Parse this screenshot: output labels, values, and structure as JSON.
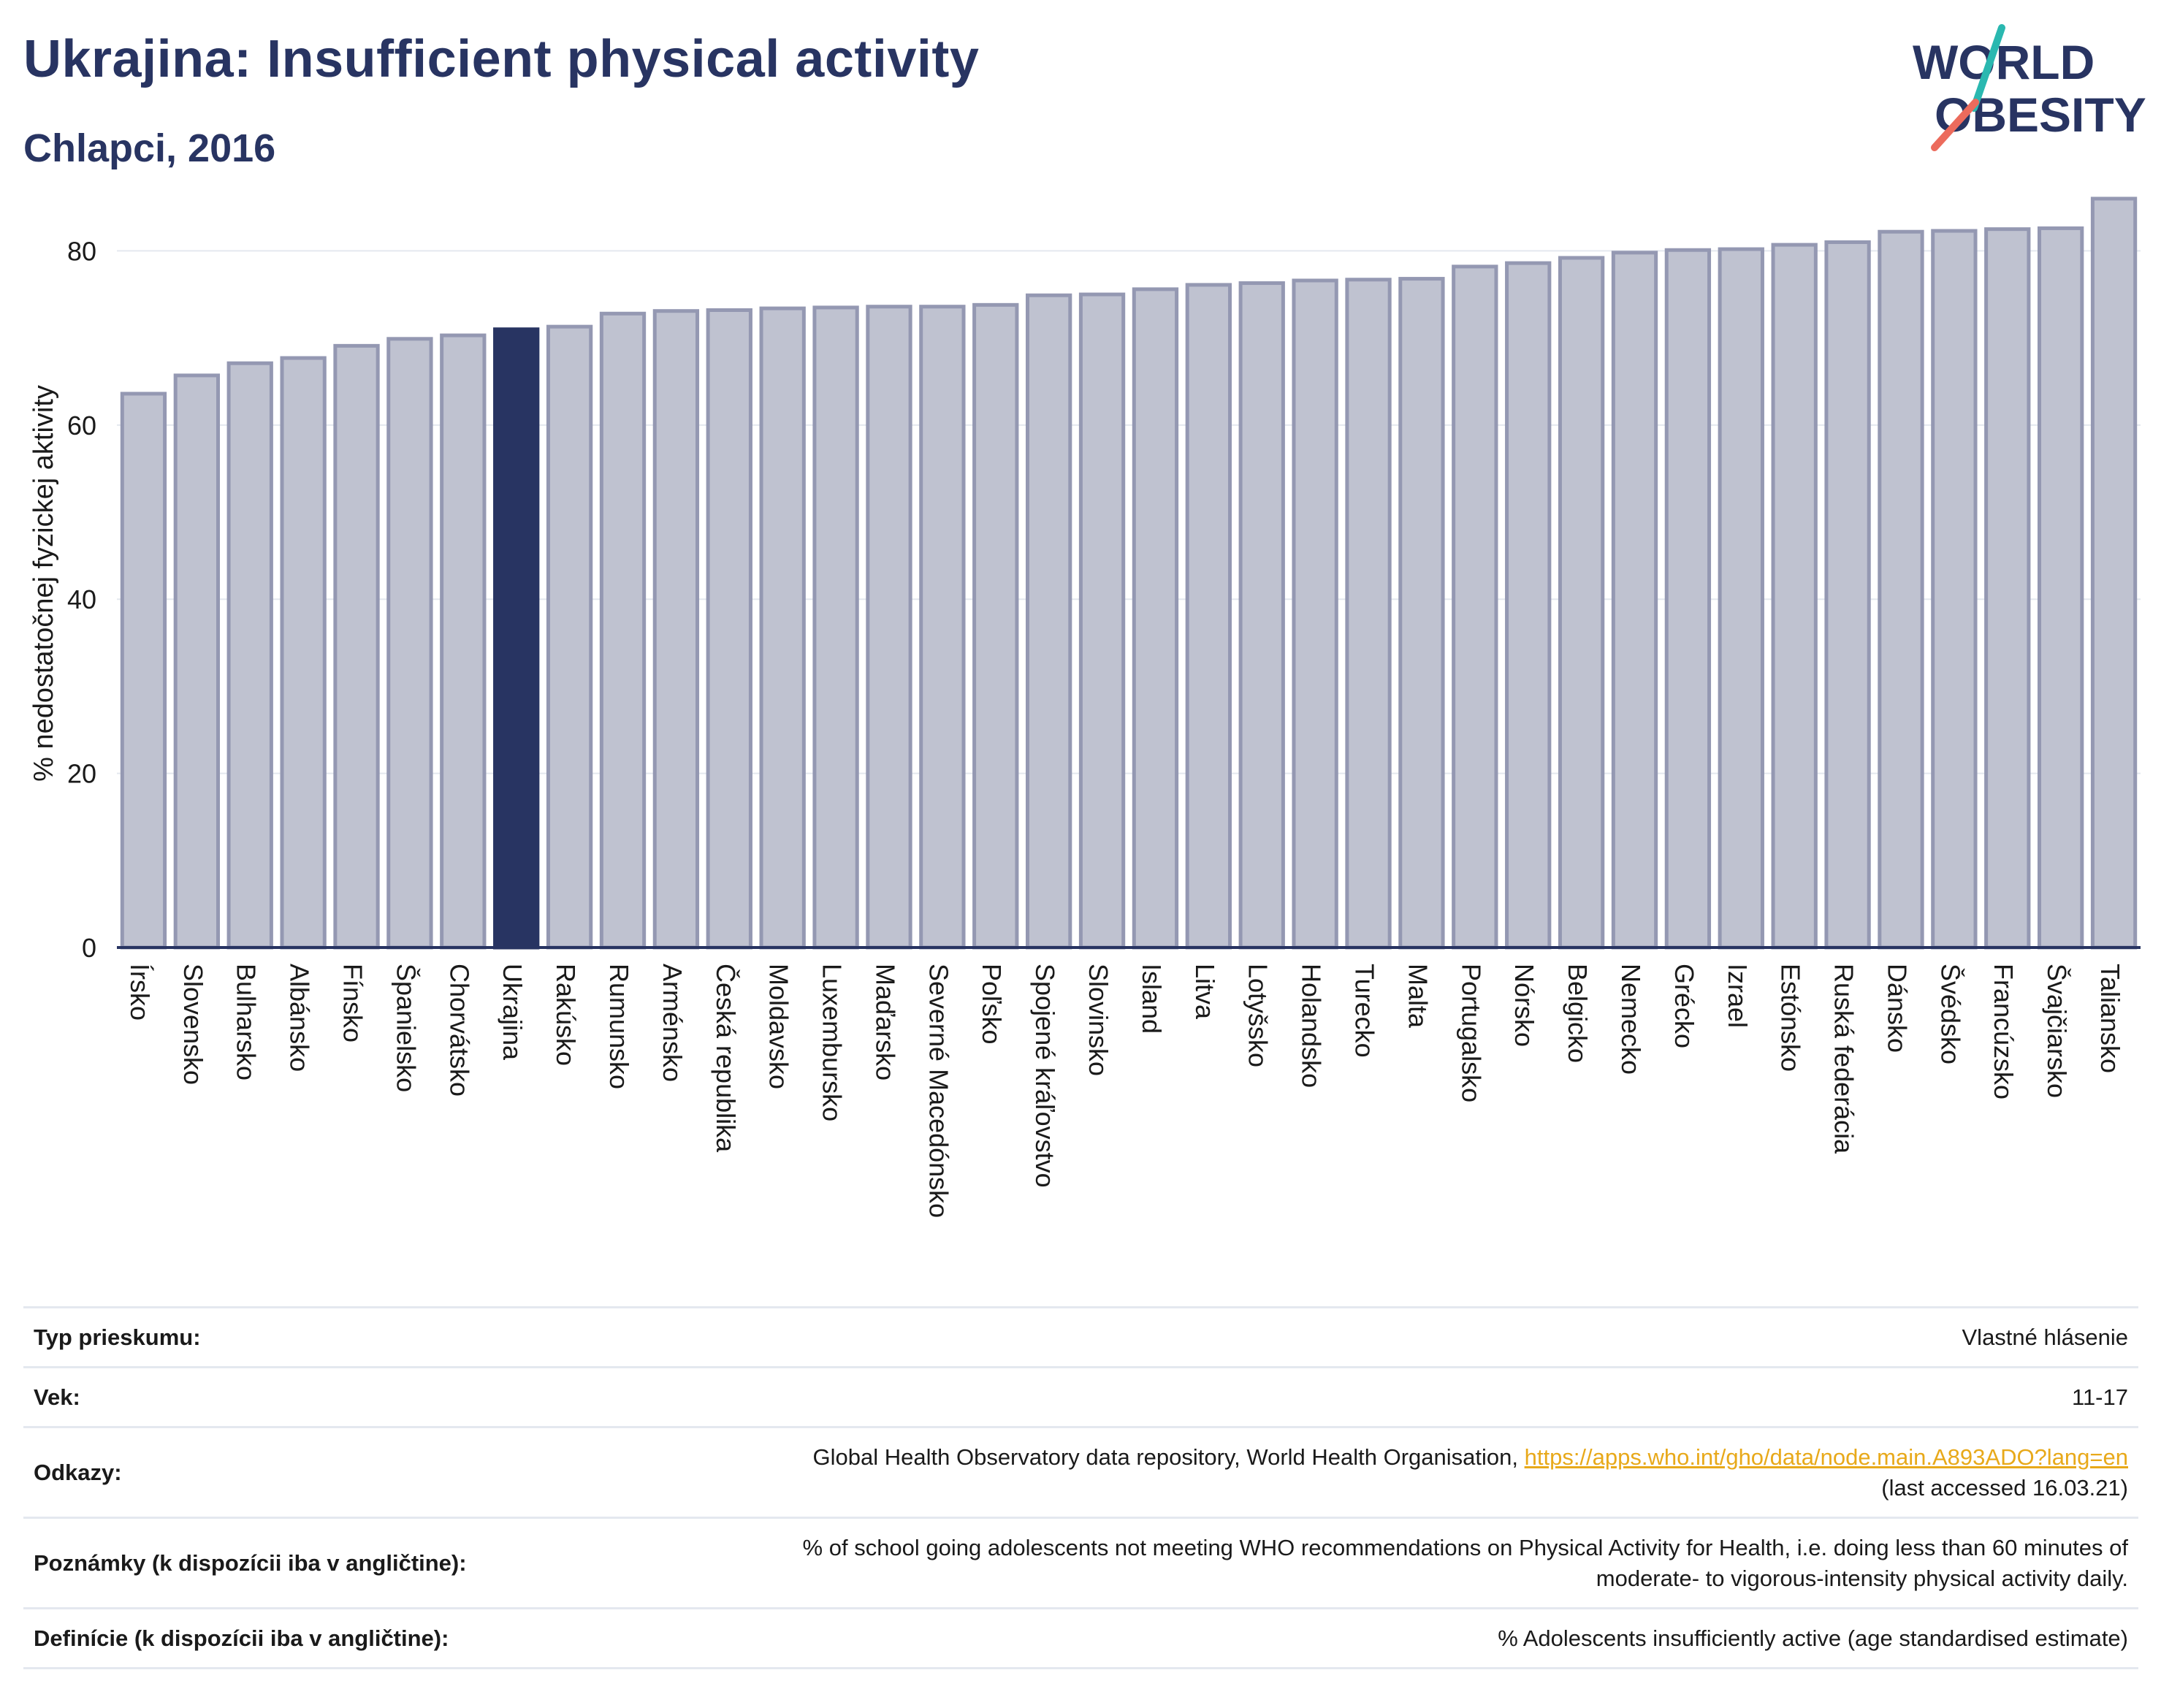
{
  "header": {
    "title": "Ukrajina: Insufficient physical activity",
    "subtitle": "Chlapci, 2016"
  },
  "logo": {
    "line1": "WORLD",
    "line2": "OBESITY"
  },
  "chart_data": {
    "type": "bar",
    "title": "Ukrajina: Insufficient physical activity",
    "subtitle": "Chlapci, 2016",
    "ylabel": "% nedostatočnej fyzickej aktivity",
    "xlabel": "",
    "ylim": [
      0,
      87
    ],
    "yticks": [
      0,
      20,
      40,
      60,
      80
    ],
    "grid": true,
    "highlight": "Ukrajina",
    "colors": {
      "bar": "#bfc2d0",
      "bar_edge": "#9498b2",
      "highlight": "#283462",
      "axis": "#283462",
      "grid": "#e4e8ef"
    },
    "categories": [
      "Írsko",
      "Slovensko",
      "Bulharsko",
      "Albánsko",
      "Fínsko",
      "Španielsko",
      "Chorvátsko",
      "Ukrajina",
      "Rakúsko",
      "Rumunsko",
      "Arménsko",
      "Česká republika",
      "Moldavsko",
      "Luxembursko",
      "Maďarsko",
      "Severné Macedónsko",
      "Poľsko",
      "Spojené kráľovstvo",
      "Slovinsko",
      "Island",
      "Litva",
      "Lotyšsko",
      "Holandsko",
      "Turecko",
      "Malta",
      "Portugalsko",
      "Nórsko",
      "Belgicko",
      "Nemecko",
      "Grécko",
      "Izrael",
      "Estónsko",
      "Ruská federácia",
      "Dánsko",
      "Švédsko",
      "Francúzsko",
      "Švajčiarsko",
      "Taliansko"
    ],
    "values": [
      63.6,
      65.7,
      67.1,
      67.7,
      69.1,
      69.9,
      70.3,
      71.0,
      71.3,
      72.8,
      73.1,
      73.2,
      73.4,
      73.5,
      73.6,
      73.6,
      73.8,
      74.9,
      75.0,
      75.6,
      76.1,
      76.3,
      76.6,
      76.7,
      76.8,
      78.2,
      78.6,
      79.2,
      79.8,
      80.1,
      80.2,
      80.7,
      81.0,
      82.2,
      82.3,
      82.5,
      82.6,
      86.0
    ]
  },
  "meta": [
    {
      "label": "Typ prieskumu:",
      "value": "Vlastné hlásenie"
    },
    {
      "label": "Vek:",
      "value": "11-17"
    },
    {
      "label": "Odkazy:",
      "text": "Global Health Observatory data repository, World Health Organisation, ",
      "link": "https://apps.who.int/gho/data/node.main.A893ADO?lang=en",
      "note": "(last accessed 16.03.21)"
    },
    {
      "label": "Poznámky (k dispozícii iba v angličtine):",
      "line1": "% of school going adolescents not meeting WHO recommendations on Physical Activity for Health, i.e. doing less than 60 minutes of",
      "line2": "moderate- to vigorous-intensity physical activity daily."
    },
    {
      "label": "Definície (k dispozícii iba v angličtine):",
      "value": "% Adolescents insufficiently active (age standardised estimate)"
    }
  ]
}
